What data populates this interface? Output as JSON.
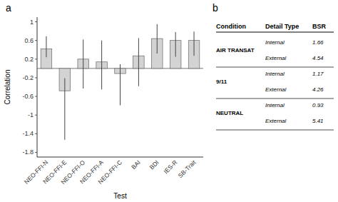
{
  "chart_data": [
    {
      "type": "bar",
      "title": "a",
      "categories": [
        "NEO-FFI-N",
        "NEO-FFI-E",
        "NEO-FFI-O",
        "NEO-FFI-A",
        "NEO-FFI-C",
        "BAI",
        "BDI",
        "IES-R",
        "SB-Trait"
      ],
      "values": [
        0.42,
        -0.48,
        0.2,
        0.14,
        -0.11,
        0.27,
        0.64,
        0.6,
        0.6
      ],
      "error_low": [
        0.18,
        1.05,
        0.63,
        0.59,
        0.68,
        0.65,
        0.32,
        0.35,
        0.33
      ],
      "error_high": [
        0.27,
        0.27,
        0.42,
        0.46,
        0.2,
        0.38,
        0.31,
        0.18,
        0.19
      ],
      "reference_line": 0,
      "color": "#d3d3d3",
      "xlabel": "Test",
      "ylabel": "Correlation",
      "ylim": [
        -1.9,
        1.1
      ],
      "yticks": [
        -1.8,
        -1.4,
        -1,
        -0.6,
        -0.2,
        0.2,
        0.6,
        1
      ]
    },
    {
      "type": "table",
      "title": "b",
      "columns": [
        "Condition",
        "Detail Type",
        "BSR"
      ],
      "rows": [
        {
          "condition": "AIR TRANSAT",
          "detail_types": [
            "Internal",
            "External"
          ],
          "values": [
            1.66,
            4.54
          ]
        },
        {
          "condition": "9/11",
          "detail_types": [
            "Internal",
            "External"
          ],
          "values": [
            1.17,
            4.26
          ]
        },
        {
          "condition": "NEUTRAL",
          "detail_types": [
            "Internal",
            "External"
          ],
          "values": [
            0.93,
            5.41
          ]
        }
      ]
    }
  ]
}
